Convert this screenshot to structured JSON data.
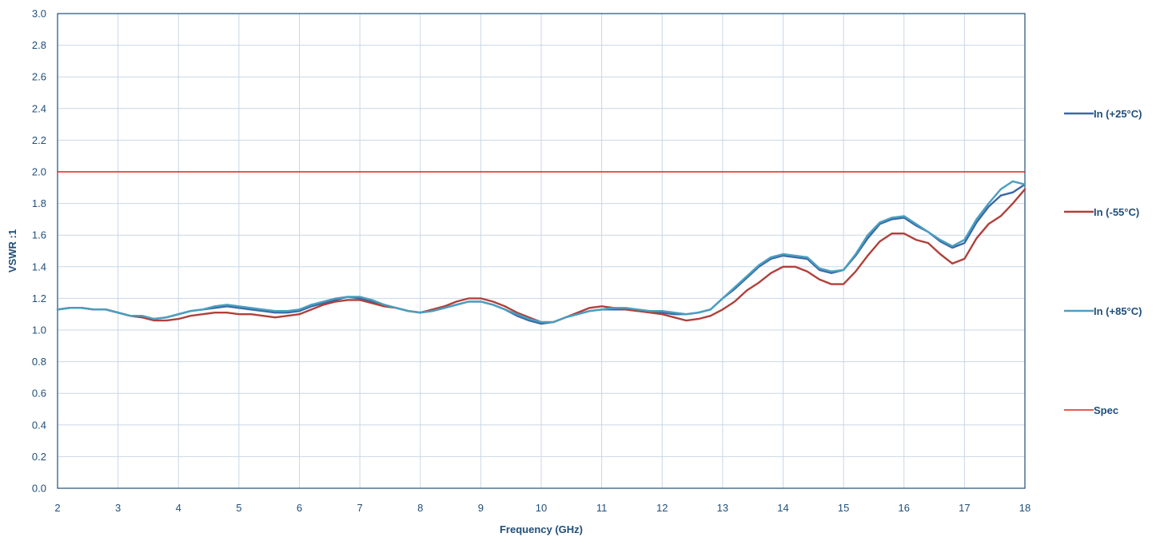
{
  "chart_data": {
    "type": "line",
    "xlabel": "Frequency (GHz)",
    "ylabel": "VSWR :1",
    "xlim": [
      2,
      18
    ],
    "ylim": [
      0,
      3.0
    ],
    "xticks": [
      2,
      3,
      4,
      5,
      6,
      7,
      8,
      9,
      10,
      11,
      12,
      13,
      14,
      15,
      16,
      17,
      18
    ],
    "xtick_labels": [
      "2",
      "3",
      "4",
      "5",
      "6",
      "7",
      "8",
      "9",
      "10",
      "11",
      "12",
      "13",
      "14",
      "15",
      "16",
      "17",
      "18"
    ],
    "yticks": [
      0,
      0.2,
      0.4,
      0.6,
      0.8,
      1.0,
      1.2,
      1.4,
      1.6,
      1.8,
      2.0,
      2.2,
      2.4,
      2.6,
      2.8,
      3.0
    ],
    "ytick_labels": [
      "0.0",
      "0.2",
      "0.4",
      "0.6",
      "0.8",
      "1.0",
      "1.2",
      "1.4",
      "1.6",
      "1.8",
      "2.0",
      "2.2",
      "2.4",
      "2.6",
      "2.8",
      "3.0"
    ],
    "grid": true,
    "legend_position": "right",
    "series": [
      {
        "name": "In (+25°C)",
        "color": "#3a68a4",
        "x": [
          2.0,
          2.2,
          2.4,
          2.6,
          2.8,
          3.0,
          3.2,
          3.4,
          3.6,
          3.8,
          4.0,
          4.2,
          4.4,
          4.6,
          4.8,
          5.0,
          5.2,
          5.4,
          5.6,
          5.8,
          6.0,
          6.2,
          6.4,
          6.6,
          6.8,
          7.0,
          7.2,
          7.4,
          7.6,
          7.8,
          8.0,
          8.2,
          8.4,
          8.6,
          8.8,
          9.0,
          9.2,
          9.4,
          9.6,
          9.8,
          10.0,
          10.2,
          10.4,
          10.6,
          10.8,
          11.0,
          11.2,
          11.4,
          11.6,
          11.8,
          12.0,
          12.2,
          12.4,
          12.6,
          12.8,
          13.0,
          13.2,
          13.4,
          13.6,
          13.8,
          14.0,
          14.2,
          14.4,
          14.6,
          14.8,
          15.0,
          15.2,
          15.4,
          15.6,
          15.8,
          16.0,
          16.2,
          16.4,
          16.6,
          16.8,
          17.0,
          17.2,
          17.4,
          17.6,
          17.8,
          18.0
        ],
        "y": [
          1.13,
          1.14,
          1.14,
          1.13,
          1.13,
          1.11,
          1.09,
          1.08,
          1.07,
          1.08,
          1.1,
          1.12,
          1.13,
          1.14,
          1.15,
          1.14,
          1.13,
          1.12,
          1.11,
          1.11,
          1.12,
          1.15,
          1.17,
          1.19,
          1.21,
          1.2,
          1.18,
          1.16,
          1.14,
          1.12,
          1.11,
          1.12,
          1.14,
          1.16,
          1.18,
          1.18,
          1.16,
          1.13,
          1.09,
          1.06,
          1.04,
          1.05,
          1.08,
          1.1,
          1.12,
          1.13,
          1.13,
          1.13,
          1.12,
          1.12,
          1.11,
          1.1,
          1.1,
          1.11,
          1.13,
          1.2,
          1.26,
          1.33,
          1.4,
          1.45,
          1.47,
          1.46,
          1.45,
          1.38,
          1.36,
          1.38,
          1.47,
          1.58,
          1.67,
          1.7,
          1.71,
          1.66,
          1.62,
          1.56,
          1.52,
          1.55,
          1.68,
          1.78,
          1.85,
          1.87,
          1.92
        ]
      },
      {
        "name": "In (-55°C)",
        "color": "#b0403a",
        "x": [
          2.0,
          2.2,
          2.4,
          2.6,
          2.8,
          3.0,
          3.2,
          3.4,
          3.6,
          3.8,
          4.0,
          4.2,
          4.4,
          4.6,
          4.8,
          5.0,
          5.2,
          5.4,
          5.6,
          5.8,
          6.0,
          6.2,
          6.4,
          6.6,
          6.8,
          7.0,
          7.2,
          7.4,
          7.6,
          7.8,
          8.0,
          8.2,
          8.4,
          8.6,
          8.8,
          9.0,
          9.2,
          9.4,
          9.6,
          9.8,
          10.0,
          10.2,
          10.4,
          10.6,
          10.8,
          11.0,
          11.2,
          11.4,
          11.6,
          11.8,
          12.0,
          12.2,
          12.4,
          12.6,
          12.8,
          13.0,
          13.2,
          13.4,
          13.6,
          13.8,
          14.0,
          14.2,
          14.4,
          14.6,
          14.8,
          15.0,
          15.2,
          15.4,
          15.6,
          15.8,
          16.0,
          16.2,
          16.4,
          16.6,
          16.8,
          17.0,
          17.2,
          17.4,
          17.6,
          17.8,
          18.0
        ],
        "y": [
          1.13,
          1.14,
          1.14,
          1.13,
          1.13,
          1.11,
          1.09,
          1.08,
          1.06,
          1.06,
          1.07,
          1.09,
          1.1,
          1.11,
          1.11,
          1.1,
          1.1,
          1.09,
          1.08,
          1.09,
          1.1,
          1.13,
          1.16,
          1.18,
          1.19,
          1.19,
          1.17,
          1.15,
          1.14,
          1.12,
          1.11,
          1.13,
          1.15,
          1.18,
          1.2,
          1.2,
          1.18,
          1.15,
          1.11,
          1.08,
          1.05,
          1.05,
          1.08,
          1.11,
          1.14,
          1.15,
          1.14,
          1.13,
          1.12,
          1.11,
          1.1,
          1.08,
          1.06,
          1.07,
          1.09,
          1.13,
          1.18,
          1.25,
          1.3,
          1.36,
          1.4,
          1.4,
          1.37,
          1.32,
          1.29,
          1.29,
          1.37,
          1.47,
          1.56,
          1.61,
          1.61,
          1.57,
          1.55,
          1.48,
          1.42,
          1.45,
          1.58,
          1.67,
          1.72,
          1.8,
          1.89
        ]
      },
      {
        "name": "In (+85°C)",
        "color": "#4a9fc0",
        "x": [
          2.0,
          2.2,
          2.4,
          2.6,
          2.8,
          3.0,
          3.2,
          3.4,
          3.6,
          3.8,
          4.0,
          4.2,
          4.4,
          4.6,
          4.8,
          5.0,
          5.2,
          5.4,
          5.6,
          5.8,
          6.0,
          6.2,
          6.4,
          6.6,
          6.8,
          7.0,
          7.2,
          7.4,
          7.6,
          7.8,
          8.0,
          8.2,
          8.4,
          8.6,
          8.8,
          9.0,
          9.2,
          9.4,
          9.6,
          9.8,
          10.0,
          10.2,
          10.4,
          10.6,
          10.8,
          11.0,
          11.2,
          11.4,
          11.6,
          11.8,
          12.0,
          12.2,
          12.4,
          12.6,
          12.8,
          13.0,
          13.2,
          13.4,
          13.6,
          13.8,
          14.0,
          14.2,
          14.4,
          14.6,
          14.8,
          15.0,
          15.2,
          15.4,
          15.6,
          15.8,
          16.0,
          16.2,
          16.4,
          16.6,
          16.8,
          17.0,
          17.2,
          17.4,
          17.6,
          17.8,
          18.0
        ],
        "y": [
          1.13,
          1.14,
          1.14,
          1.13,
          1.13,
          1.11,
          1.09,
          1.09,
          1.07,
          1.08,
          1.1,
          1.12,
          1.13,
          1.15,
          1.16,
          1.15,
          1.14,
          1.13,
          1.12,
          1.12,
          1.13,
          1.16,
          1.18,
          1.2,
          1.21,
          1.21,
          1.19,
          1.16,
          1.14,
          1.12,
          1.11,
          1.12,
          1.14,
          1.16,
          1.18,
          1.18,
          1.16,
          1.13,
          1.1,
          1.07,
          1.05,
          1.05,
          1.08,
          1.1,
          1.12,
          1.13,
          1.14,
          1.14,
          1.13,
          1.12,
          1.12,
          1.11,
          1.1,
          1.11,
          1.13,
          1.2,
          1.27,
          1.34,
          1.41,
          1.46,
          1.48,
          1.47,
          1.46,
          1.39,
          1.37,
          1.38,
          1.48,
          1.6,
          1.68,
          1.71,
          1.72,
          1.67,
          1.62,
          1.57,
          1.53,
          1.57,
          1.7,
          1.8,
          1.89,
          1.94,
          1.92
        ]
      },
      {
        "name": "Spec",
        "color": "#e3211f",
        "x": [
          2,
          18
        ],
        "y": [
          2.0,
          2.0
        ]
      }
    ]
  }
}
